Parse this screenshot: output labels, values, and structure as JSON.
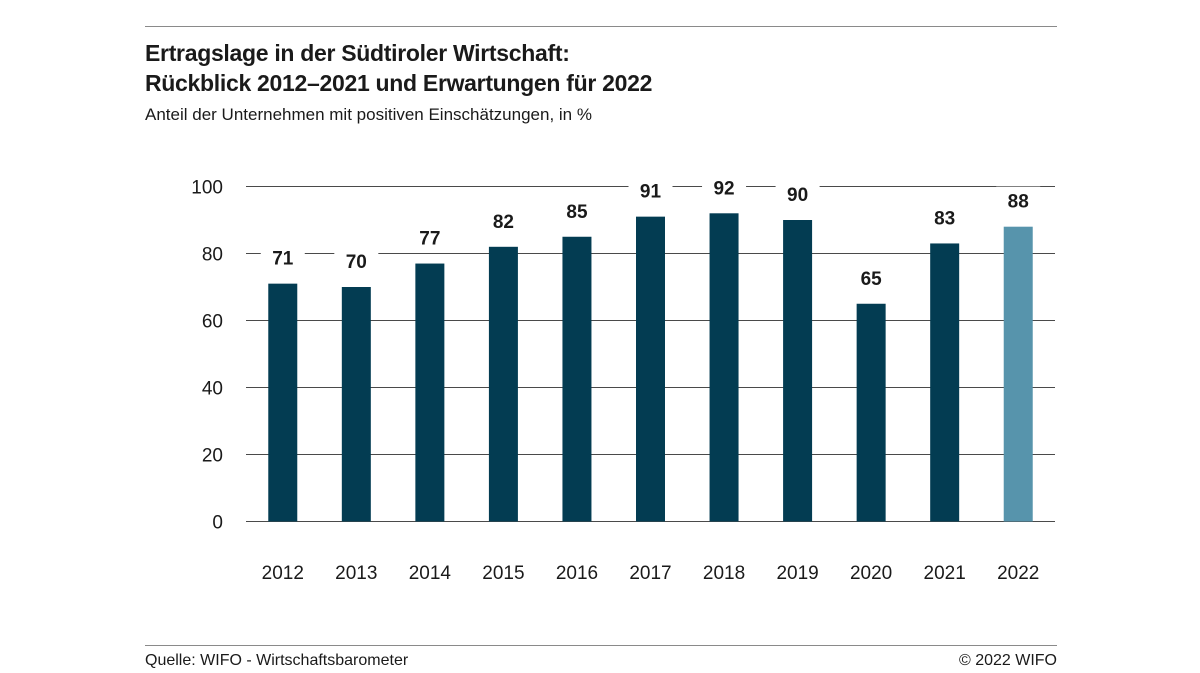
{
  "header": {
    "title_line1": "Ertragslage in der Südtiroler Wirtschaft:",
    "title_line2": "Rückblick 2012–2021 und Erwartungen für 2022",
    "subtitle": "Anteil der Unternehmen mit positiven Einschätzungen, in %"
  },
  "footer": {
    "source": "Quelle: WIFO - Wirtschaftsbarometer",
    "copyright": "© 2022 WIFO"
  },
  "chart_data": {
    "type": "bar",
    "categories": [
      "2012",
      "2013",
      "2014",
      "2015",
      "2016",
      "2017",
      "2018",
      "2019",
      "2020",
      "2021",
      "2022"
    ],
    "values": [
      71,
      70,
      77,
      82,
      85,
      91,
      92,
      90,
      65,
      83,
      88
    ],
    "data_labels": [
      "71",
      "70",
      "77",
      "82",
      "85",
      "91",
      "92",
      "90",
      "65",
      "83",
      "88"
    ],
    "ylim": [
      0,
      100
    ],
    "yticks": [
      0,
      20,
      40,
      60,
      80,
      100
    ],
    "grid": true,
    "legend": "none",
    "colors": {
      "actual": "#033c52",
      "expectation": "#5794ac",
      "grid": "#4a4a4a"
    },
    "expectation_category": "2022"
  }
}
